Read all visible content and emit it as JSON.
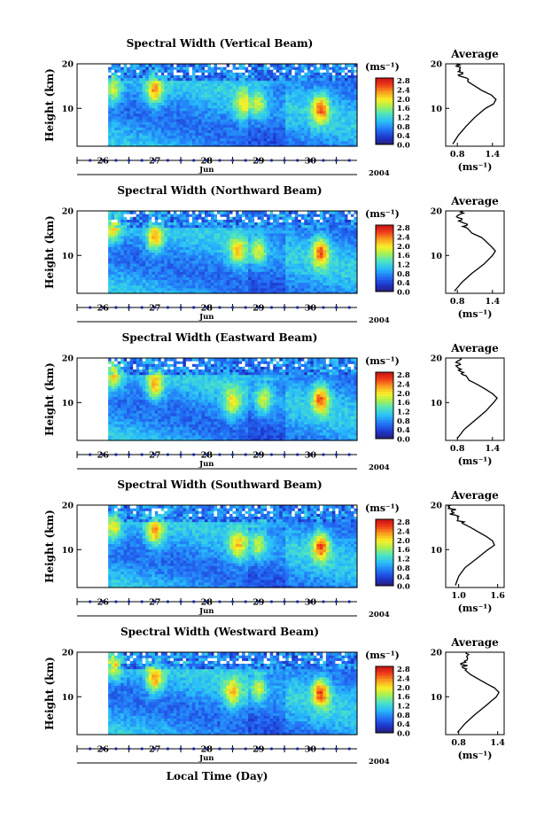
{
  "figure": {
    "xlabel": "Local Time (Day)"
  },
  "common": {
    "y_label": "Height (km)",
    "y_ticks": [
      "20",
      "10"
    ],
    "day_labels": [
      "26",
      "27",
      "28",
      "29",
      "30"
    ],
    "month": "Jun",
    "year": "2004",
    "colorbar_unit": "(ms⁻¹)",
    "colorbar_ticks": [
      "0.0",
      "0.4",
      "0.8",
      "1.2",
      "1.6",
      "2.0",
      "2.4",
      "2.8"
    ],
    "avg_title": "Average",
    "avg_unit": "(ms⁻¹)",
    "avg_y_ticks": [
      "20",
      "10"
    ]
  },
  "chart_data": [
    {
      "type": "heatmap",
      "title": "Spectral Width (Vertical Beam)",
      "ylabel": "Height (km)",
      "ylim": [
        1.5,
        20
      ],
      "xlim": [
        25.5,
        30.9
      ],
      "data_start": 26.1,
      "colorbar": {
        "unit": "ms^-1",
        "range": [
          0.0,
          2.8
        ]
      },
      "hot_spots": [
        [
          27.0,
          14,
          2.4
        ],
        [
          26.2,
          14,
          1.8
        ],
        [
          28.7,
          11,
          1.6
        ],
        [
          30.2,
          10,
          2.6
        ],
        [
          29.0,
          11,
          1.6
        ]
      ],
      "average_profile": {
        "title": "Average",
        "xlabel": "(ms^-1)",
        "x_ticks": [
          "0.8",
          "1.4"
        ],
        "xlim": [
          0.6,
          1.6
        ],
        "height": [
          2,
          4,
          6,
          8,
          10,
          11,
          12,
          13,
          14,
          15,
          16,
          17,
          18,
          19,
          20
        ],
        "values": [
          0.72,
          0.82,
          0.95,
          1.1,
          1.28,
          1.42,
          1.46,
          1.38,
          1.22,
          1.1,
          0.98,
          0.9,
          0.84,
          0.8,
          0.78
        ]
      }
    },
    {
      "type": "heatmap",
      "title": "Spectral Width (Northward Beam)",
      "ylabel": "Height (km)",
      "ylim": [
        1.5,
        20
      ],
      "xlim": [
        25.5,
        30.9
      ],
      "data_start": 26.1,
      "colorbar": {
        "unit": "ms^-1",
        "range": [
          0.0,
          2.8
        ]
      },
      "hot_spots": [
        [
          27.0,
          14,
          2.2
        ],
        [
          26.2,
          16,
          2.0
        ],
        [
          28.6,
          11,
          1.8
        ],
        [
          30.2,
          11,
          2.6
        ],
        [
          29.0,
          11,
          1.8
        ]
      ],
      "average_profile": {
        "title": "Average",
        "xlabel": "(ms^-1)",
        "x_ticks": [
          "0.8",
          "1.4"
        ],
        "xlim": [
          0.6,
          1.6
        ],
        "height": [
          2,
          4,
          6,
          8,
          10,
          11,
          12,
          13,
          14,
          15,
          16,
          17,
          18,
          19,
          20
        ],
        "values": [
          0.75,
          0.88,
          1.05,
          1.25,
          1.4,
          1.45,
          1.38,
          1.3,
          1.22,
          1.05,
          0.98,
          0.92,
          0.86,
          0.8,
          0.9
        ]
      }
    },
    {
      "type": "heatmap",
      "title": "Spectral Width (Eastward Beam)",
      "ylabel": "Height (km)",
      "ylim": [
        1.5,
        20
      ],
      "xlim": [
        25.5,
        30.9
      ],
      "data_start": 26.1,
      "colorbar": {
        "unit": "ms^-1",
        "range": [
          0.0,
          2.8
        ]
      },
      "hot_spots": [
        [
          27.0,
          14,
          2.3
        ],
        [
          26.2,
          16,
          2.0
        ],
        [
          28.5,
          10,
          1.8
        ],
        [
          30.2,
          11,
          2.6
        ],
        [
          29.1,
          11,
          1.7
        ]
      ],
      "average_profile": {
        "title": "Average",
        "xlabel": "(ms^-1)",
        "x_ticks": [
          "0.8",
          "1.4"
        ],
        "xlim": [
          0.6,
          1.6
        ],
        "height": [
          2,
          4,
          6,
          8,
          10,
          11,
          12,
          13,
          14,
          15,
          16,
          17,
          18,
          19,
          20
        ],
        "values": [
          0.8,
          0.92,
          1.1,
          1.28,
          1.42,
          1.48,
          1.4,
          1.28,
          1.15,
          1.0,
          0.95,
          0.88,
          0.82,
          0.8,
          0.85
        ]
      }
    },
    {
      "type": "heatmap",
      "title": "Spectral Width (Southward Beam)",
      "ylabel": "Height (km)",
      "ylim": [
        1.5,
        20
      ],
      "xlim": [
        25.5,
        30.9
      ],
      "data_start": 26.1,
      "colorbar": {
        "unit": "ms^-1",
        "range": [
          0.0,
          2.8
        ]
      },
      "hot_spots": [
        [
          27.0,
          14,
          2.4
        ],
        [
          26.2,
          15,
          2.0
        ],
        [
          28.6,
          11,
          1.9
        ],
        [
          30.2,
          11,
          2.7
        ],
        [
          29.0,
          11,
          1.7
        ]
      ],
      "average_profile": {
        "title": "Average",
        "xlabel": "(ms^-1)",
        "x_ticks": [
          "1.0",
          "1.6"
        ],
        "xlim": [
          0.8,
          1.7
        ],
        "height": [
          2,
          4,
          6,
          8,
          10,
          11,
          12,
          13,
          14,
          15,
          16,
          17,
          18,
          19,
          20
        ],
        "values": [
          0.95,
          1.0,
          1.1,
          1.28,
          1.45,
          1.55,
          1.52,
          1.42,
          1.3,
          1.18,
          1.05,
          0.98,
          0.92,
          0.9,
          0.88
        ]
      }
    },
    {
      "type": "heatmap",
      "title": "Spectral Width (Westward Beam)",
      "ylabel": "Height (km)",
      "ylim": [
        1.5,
        20
      ],
      "xlim": [
        25.5,
        30.9
      ],
      "data_start": 26.1,
      "colorbar": {
        "unit": "ms^-1",
        "range": [
          0.0,
          2.8
        ]
      },
      "hot_spots": [
        [
          27.0,
          14,
          2.3
        ],
        [
          26.2,
          17,
          2.0
        ],
        [
          28.5,
          11,
          1.9
        ],
        [
          30.2,
          11,
          2.7
        ],
        [
          29.0,
          12,
          1.7
        ]
      ],
      "average_profile": {
        "title": "Average",
        "xlabel": "(ms^-1)",
        "x_ticks": [
          "0.8",
          "1.4"
        ],
        "xlim": [
          0.6,
          1.5
        ],
        "height": [
          2,
          4,
          6,
          8,
          10,
          11,
          12,
          13,
          14,
          15,
          16,
          17,
          18,
          19,
          20
        ],
        "values": [
          0.78,
          0.9,
          1.05,
          1.22,
          1.38,
          1.42,
          1.35,
          1.22,
          1.1,
          0.98,
          0.9,
          0.88,
          0.86,
          0.9,
          0.92
        ]
      }
    }
  ]
}
